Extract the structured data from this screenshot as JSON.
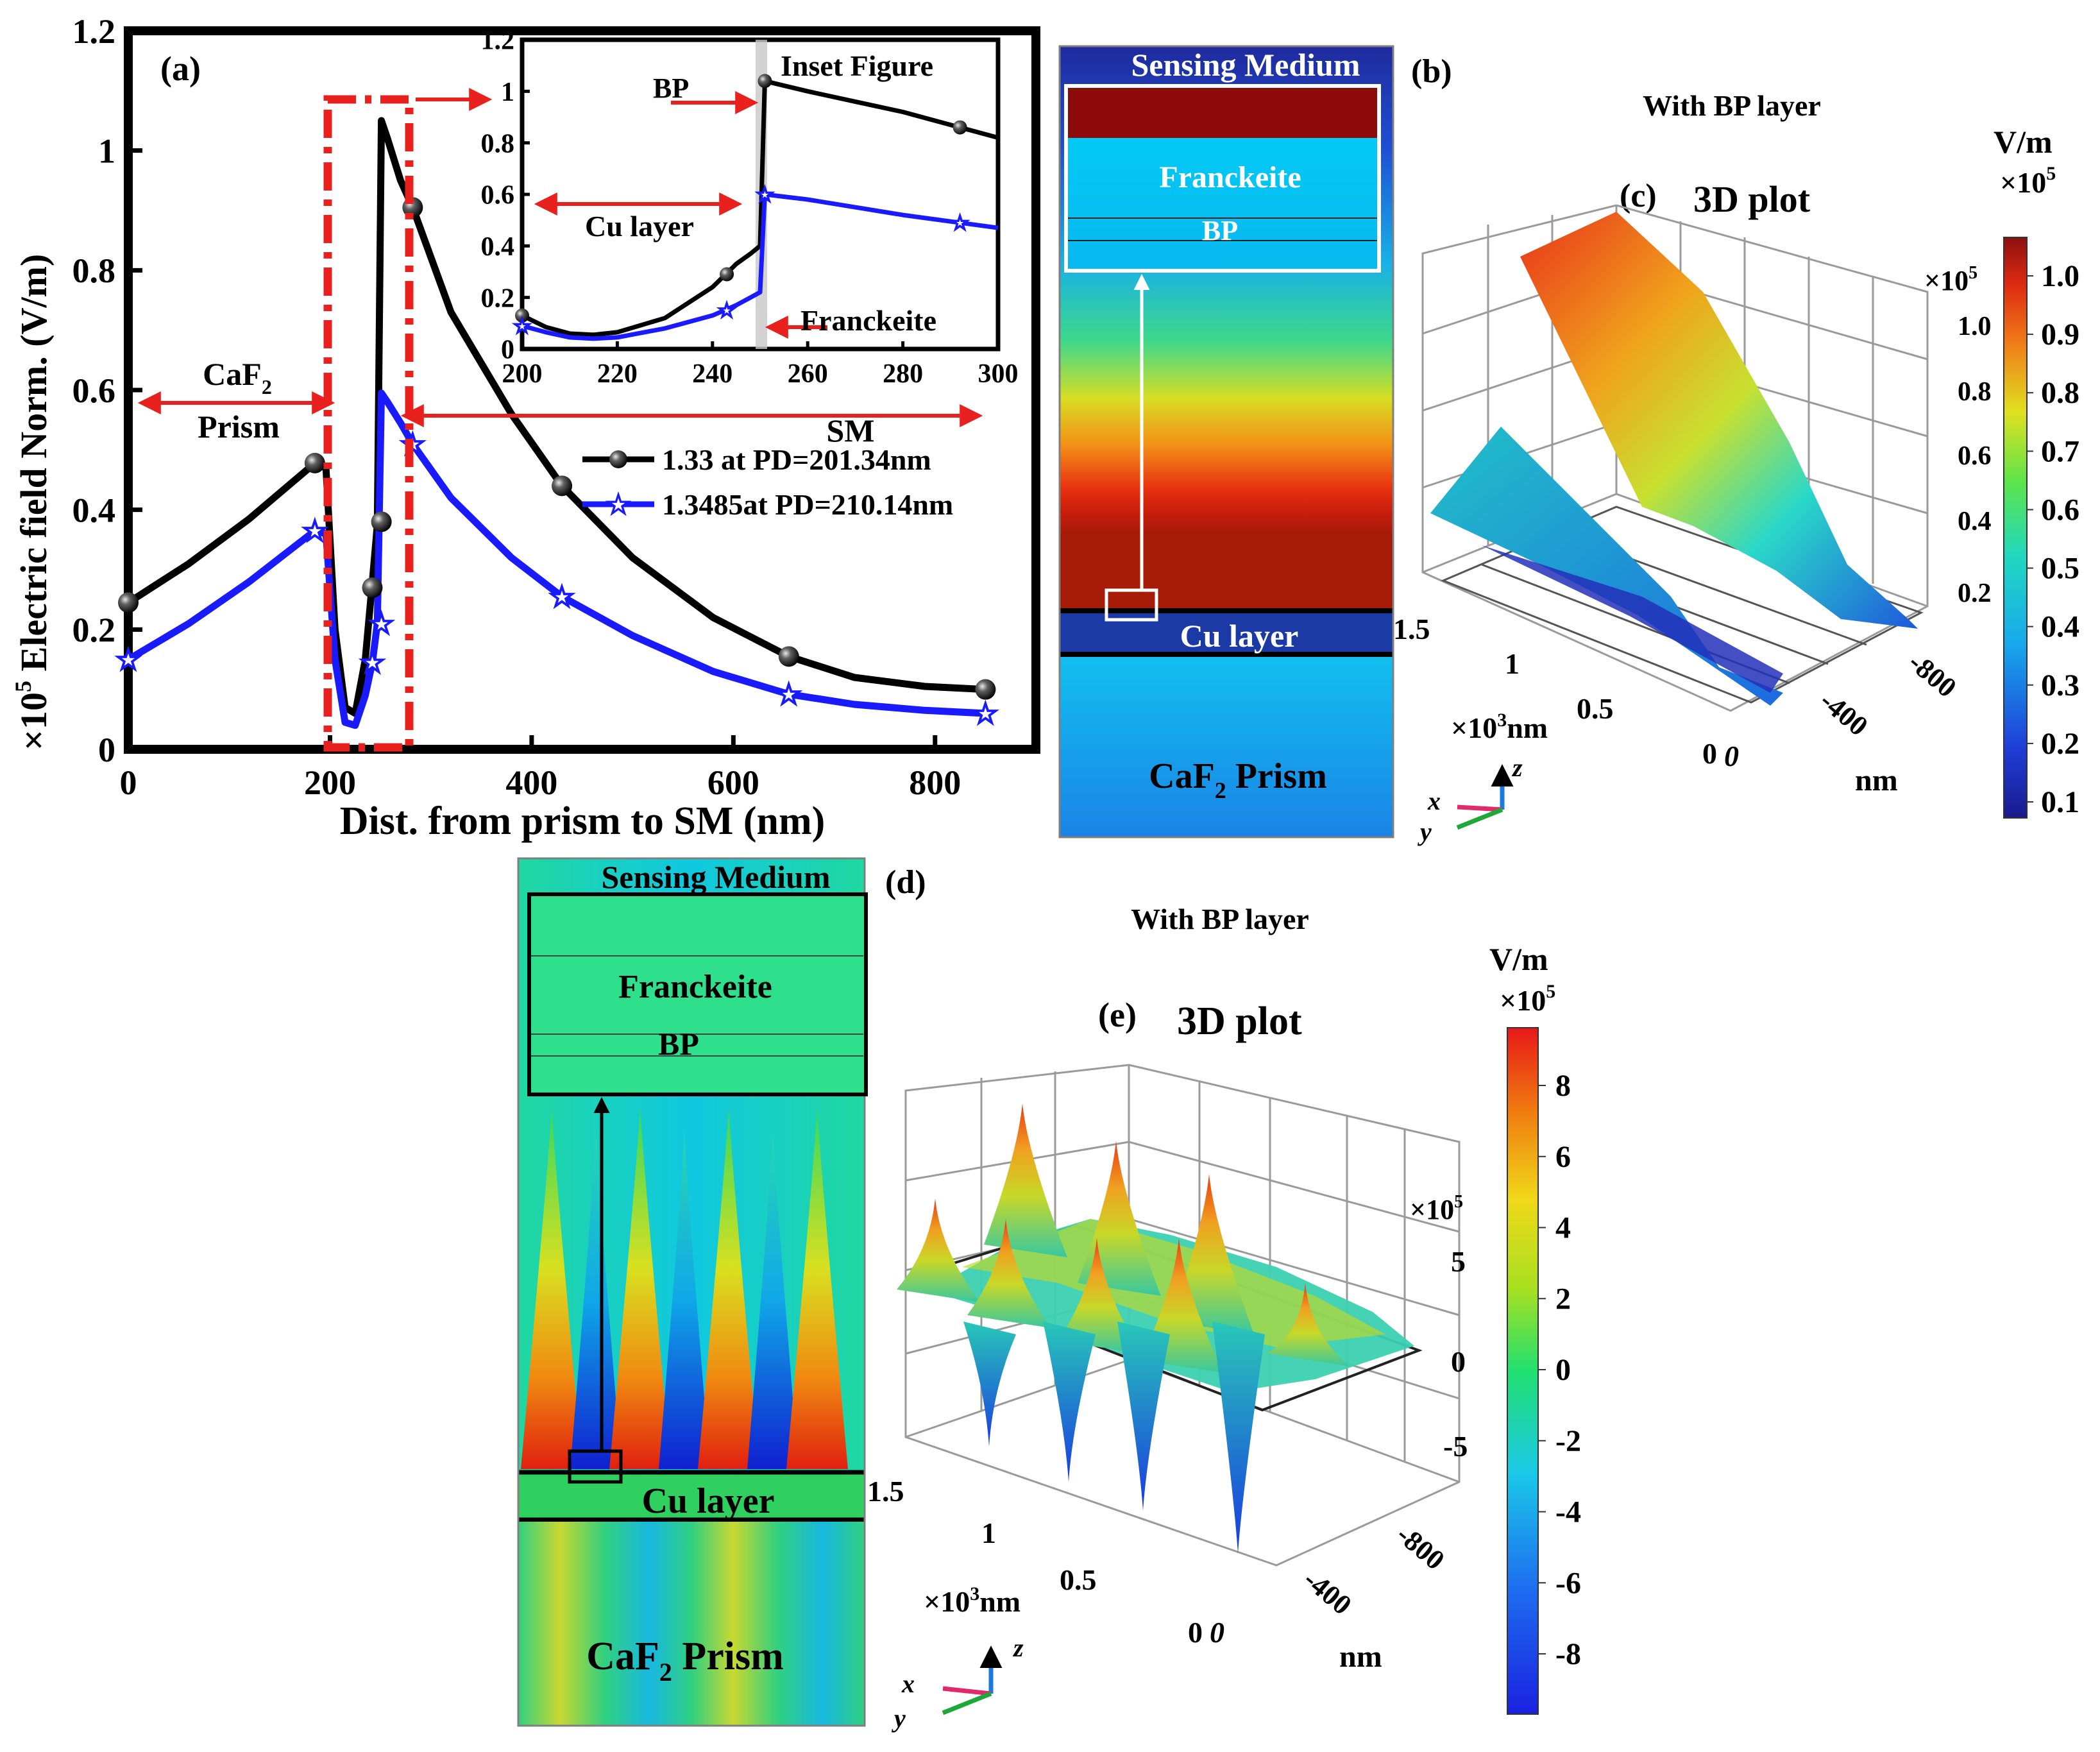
{
  "panel_a": {
    "label": "(a)",
    "y_multiplier_base": "×10",
    "y_multiplier_exp": "5",
    "ylabel": "Electric field Norm. (V/m)",
    "xlabel": "Dist. from prism to SM (nm)",
    "region_prism_line1": "CaF",
    "region_prism_sub": "2",
    "region_prism_line2": "Prism",
    "region_sm": "SM",
    "legend": [
      "1.33 at PD=201.34nm",
      "1.3485at PD=210.14nm"
    ]
  },
  "inset": {
    "title": "Inset Figure",
    "bp": "BP",
    "cu": "Cu layer",
    "frankeite": "Franckeite"
  },
  "panel_b": {
    "label": "(b)",
    "sensing_medium": "Sensing Medium",
    "frankeite": "Franckeite",
    "bp": "BP",
    "cu": "Cu layer",
    "prism": "CaF",
    "prism_sub": "2",
    "prism_word": "Prism"
  },
  "panel_c": {
    "label": "(c)",
    "plot_title": "3D plot",
    "with_bp": "With BP layer",
    "unit": "V/m",
    "scale_base": "×10",
    "scale_exp": "5",
    "colorbar_ticks": [
      "1.0",
      "0.9",
      "0.8",
      "0.7",
      "0.6",
      "0.5",
      "0.4",
      "0.3",
      "0.2",
      "0.1"
    ],
    "z_scale_base": "×10",
    "z_scale_exp": "5",
    "z_ticks": [
      "1.0",
      "0.8",
      "0.6",
      "0.4",
      "0.2"
    ],
    "x_axis_ticks": [
      "1.5",
      "1",
      "0.5",
      "0"
    ],
    "x_axis_unit_base": "×10",
    "x_axis_unit_exp": "3",
    "x_axis_unit_tail": "nm",
    "y_axis_ticks": [
      "0",
      "-400",
      "-800"
    ],
    "y_axis_unit": "nm",
    "triad": [
      "x",
      "y",
      "z"
    ]
  },
  "panel_d": {
    "label": "(d)",
    "sensing_medium": "Sensing Medium",
    "frankeite": "Franckeite",
    "bp": "BP",
    "cu": "Cu layer",
    "prism": "CaF",
    "prism_sub": "2",
    "prism_word": "Prism"
  },
  "panel_e": {
    "label": "(e)",
    "plot_title": "3D plot",
    "with_bp": "With BP layer",
    "unit": "V/m",
    "scale_base": "×10",
    "scale_exp": "5",
    "colorbar_ticks": [
      "8",
      "6",
      "4",
      "2",
      "0",
      "-2",
      "-4",
      "-6",
      "-8"
    ],
    "z_scale_base": "×10",
    "z_scale_exp": "5",
    "z_ticks": [
      "5",
      "0",
      "-5"
    ],
    "x_axis_ticks": [
      "1.5",
      "1",
      "0.5",
      "0"
    ],
    "x_axis_unit_base": "×10",
    "x_axis_unit_exp": "3",
    "x_axis_unit_tail": "nm",
    "y_axis_ticks": [
      "0",
      "-400",
      "-800"
    ],
    "y_axis_unit": "nm",
    "triad": [
      "x",
      "y",
      "z"
    ]
  },
  "colors": {
    "series1": "#000000",
    "series2": "#1a1aff",
    "highlight": "#e8201e",
    "field_dark_blue": "#1c2a9c",
    "field_red": "#e02a10",
    "cyan": "#13c8f0"
  },
  "chart_data": [
    {
      "type": "line",
      "title": "(a)",
      "xlabel": "Dist. from prism to SM (nm)",
      "ylabel": "×10^5 Electric field Norm. (V/m)",
      "xlim": [
        0,
        900
      ],
      "ylim": [
        0,
        1.2
      ],
      "xticks": [
        0,
        200,
        400,
        600,
        800
      ],
      "yticks": [
        0,
        0.2,
        0.4,
        0.6,
        0.8,
        1.0,
        1.2
      ],
      "series": [
        {
          "name": "1.33 at PD=201.34nm",
          "x": [
            0,
            60,
            120,
            185,
            196,
            205,
            215,
            225,
            235,
            242,
            247,
            251,
            257,
            270,
            282,
            320,
            380,
            430,
            500,
            580,
            655,
            720,
            790,
            850
          ],
          "y": [
            0.245,
            0.31,
            0.385,
            0.478,
            0.47,
            0.2,
            0.07,
            0.06,
            0.15,
            0.28,
            0.375,
            1.05,
            1.02,
            0.95,
            0.905,
            0.73,
            0.56,
            0.44,
            0.32,
            0.22,
            0.155,
            0.12,
            0.105,
            0.1
          ],
          "markers_x": [
            0,
            185,
            242,
            251,
            282,
            430,
            655,
            850
          ],
          "markers_y": [
            0.245,
            0.478,
            0.27,
            0.38,
            0.905,
            0.44,
            0.155,
            0.1
          ]
        },
        {
          "name": "1.3485at PD=210.14nm",
          "x": [
            0,
            60,
            120,
            185,
            196,
            205,
            215,
            225,
            235,
            242,
            247,
            251,
            257,
            270,
            282,
            320,
            380,
            430,
            500,
            580,
            655,
            720,
            790,
            850
          ],
          "y": [
            0.15,
            0.21,
            0.28,
            0.365,
            0.36,
            0.15,
            0.045,
            0.04,
            0.09,
            0.145,
            0.21,
            0.595,
            0.58,
            0.545,
            0.51,
            0.42,
            0.32,
            0.255,
            0.19,
            0.13,
            0.092,
            0.075,
            0.065,
            0.06
          ],
          "markers_x": [
            0,
            185,
            242,
            251,
            282,
            430,
            655,
            850
          ],
          "markers_y": [
            0.15,
            0.365,
            0.145,
            0.21,
            0.51,
            0.255,
            0.092,
            0.06
          ]
        }
      ],
      "annotations": [
        "CaF2 Prism",
        "SM"
      ]
    },
    {
      "type": "line",
      "title": "Inset Figure",
      "xlim": [
        200,
        300
      ],
      "ylim": [
        0,
        1.2
      ],
      "xticks": [
        200,
        220,
        240,
        260,
        280,
        300
      ],
      "yticks": [
        0,
        0.2,
        0.4,
        0.6,
        0.8,
        1.0,
        1.2
      ],
      "series": [
        {
          "name": "1.33 at PD=201.34nm",
          "x": [
            200,
            205,
            210,
            215,
            220,
            230,
            240,
            245,
            248,
            250,
            251,
            260,
            270,
            280,
            292,
            300
          ],
          "y": [
            0.13,
            0.085,
            0.06,
            0.055,
            0.065,
            0.12,
            0.24,
            0.33,
            0.37,
            0.4,
            1.04,
            1.0,
            0.96,
            0.92,
            0.86,
            0.82
          ],
          "markers_x": [
            200,
            243,
            251,
            292
          ],
          "markers_y": [
            0.13,
            0.29,
            1.04,
            0.86
          ]
        },
        {
          "name": "1.3485at PD=210.14nm",
          "x": [
            200,
            205,
            210,
            215,
            220,
            230,
            240,
            245,
            248,
            250,
            251,
            260,
            270,
            280,
            292,
            300
          ],
          "y": [
            0.09,
            0.065,
            0.045,
            0.04,
            0.045,
            0.08,
            0.13,
            0.17,
            0.2,
            0.22,
            0.6,
            0.58,
            0.55,
            0.52,
            0.49,
            0.47
          ],
          "markers_x": [
            200,
            243,
            251,
            292
          ],
          "markers_y": [
            0.09,
            0.15,
            0.6,
            0.49
          ]
        }
      ],
      "annotations": [
        "BP",
        "Cu layer",
        "Franckeite"
      ]
    }
  ]
}
